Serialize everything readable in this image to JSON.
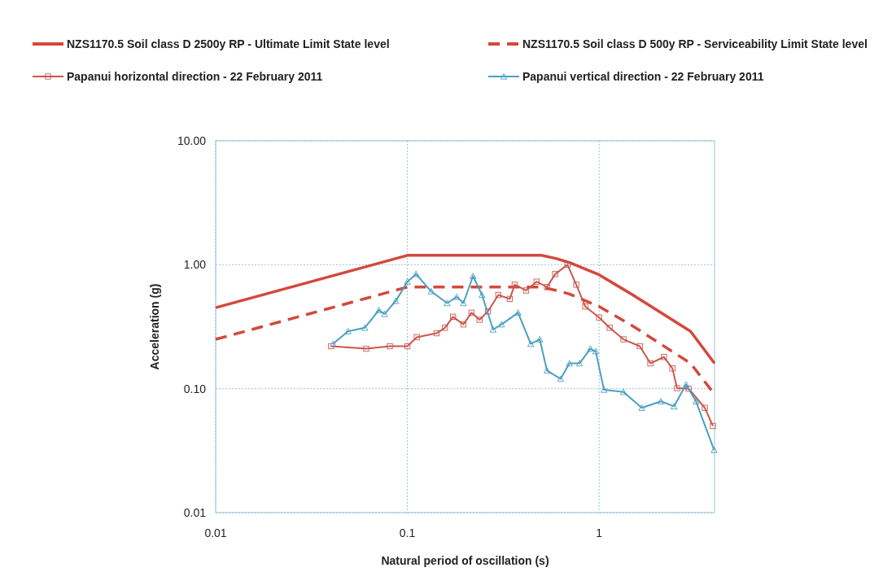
{
  "chart_data": {
    "type": "line",
    "xlabel": "Natural period of oscillation (s)",
    "ylabel": "Acceleration (g)",
    "log": "xy",
    "grid": true,
    "legend": "top",
    "xlim": [
      0.01,
      4
    ],
    "xticks": [
      0.01,
      0.1,
      1
    ],
    "ylim": [
      0.01,
      10
    ],
    "yticks": [
      {
        "value": 0.01,
        "label": "0.01"
      },
      {
        "value": 0.1,
        "label": "0.10"
      },
      {
        "value": 1,
        "label": "1.00"
      },
      {
        "value": 10,
        "label": "10.00"
      }
    ],
    "series": [
      {
        "name": "NZS1170.5 Soil class D 2500y RP - Ultimate Limit State level",
        "color": "#d4483c",
        "line_style": "solid",
        "marker": "none",
        "x": [
          0.01,
          0.1,
          0.5,
          0.6,
          0.7,
          1,
          1.5,
          3,
          4
        ],
        "values": [
          0.45,
          1.19,
          1.19,
          1.12,
          1.04,
          0.83,
          0.57,
          0.29,
          0.16
        ]
      },
      {
        "name": "NZS1170.5 Soil class D 500y RP - Serviceability Limit State level",
        "color": "#d4483c",
        "line_style": "dashed",
        "marker": "none",
        "x": [
          0.01,
          0.1,
          0.5,
          0.6,
          0.7,
          1,
          1.5,
          3,
          4
        ],
        "values": [
          0.25,
          0.66,
          0.66,
          0.62,
          0.58,
          0.46,
          0.32,
          0.16,
          0.09
        ]
      },
      {
        "name": "Papanui horizontal direction - 22 February 2011",
        "color": "#c9574c",
        "line_style": "solid",
        "marker": "square",
        "x": [
          0.04,
          0.061,
          0.081,
          0.1,
          0.112,
          0.142,
          0.157,
          0.173,
          0.196,
          0.216,
          0.238,
          0.263,
          0.298,
          0.342,
          0.363,
          0.416,
          0.472,
          0.535,
          0.59,
          0.684,
          0.76,
          0.847,
          1.0,
          1.135,
          1.34,
          1.63,
          1.85,
          2.18,
          2.41,
          2.55,
          2.93,
          3.56,
          3.92
        ],
        "values": [
          0.22,
          0.21,
          0.22,
          0.22,
          0.26,
          0.28,
          0.31,
          0.38,
          0.33,
          0.41,
          0.36,
          0.42,
          0.57,
          0.53,
          0.69,
          0.62,
          0.73,
          0.66,
          0.84,
          1.0,
          0.69,
          0.46,
          0.375,
          0.31,
          0.25,
          0.22,
          0.16,
          0.18,
          0.146,
          0.101,
          0.1,
          0.07,
          0.05
        ]
      },
      {
        "name": "Papanui vertical direction - 22 February 2011",
        "color": "#4b9fc2",
        "line_style": "solid",
        "marker": "triangle",
        "x": [
          0.041,
          0.049,
          0.06,
          0.071,
          0.076,
          0.087,
          0.1,
          0.111,
          0.133,
          0.161,
          0.181,
          0.196,
          0.22,
          0.245,
          0.28,
          0.31,
          0.378,
          0.44,
          0.49,
          0.535,
          0.63,
          0.7,
          0.79,
          0.9,
          0.96,
          1.06,
          1.34,
          1.67,
          2.1,
          2.46,
          2.84,
          3.2,
          3.98
        ],
        "values": [
          0.23,
          0.29,
          0.31,
          0.43,
          0.4,
          0.51,
          0.73,
          0.84,
          0.61,
          0.49,
          0.55,
          0.49,
          0.81,
          0.57,
          0.3,
          0.33,
          0.41,
          0.23,
          0.25,
          0.14,
          0.12,
          0.16,
          0.16,
          0.21,
          0.2,
          0.098,
          0.094,
          0.07,
          0.079,
          0.072,
          0.108,
          0.079,
          0.032
        ]
      }
    ]
  }
}
